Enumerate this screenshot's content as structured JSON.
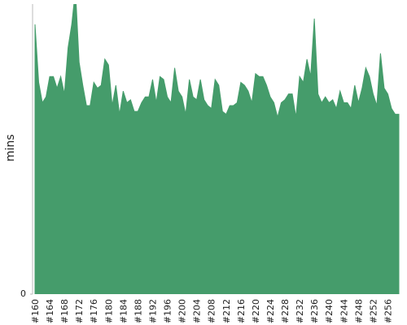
{
  "chart_data": {
    "type": "area",
    "y_label": "mins",
    "color": "#459c6b",
    "categories": [
      "#160",
      null,
      null,
      null,
      "#164",
      null,
      null,
      null,
      "#168",
      null,
      null,
      null,
      "#172",
      null,
      null,
      null,
      "#176",
      null,
      null,
      null,
      "#180",
      null,
      null,
      null,
      "#184",
      null,
      null,
      null,
      "#188",
      null,
      null,
      null,
      "#192",
      null,
      null,
      null,
      "#196",
      null,
      null,
      null,
      "#200",
      null,
      null,
      null,
      "#204",
      null,
      null,
      null,
      "#208",
      null,
      null,
      null,
      "#212",
      null,
      null,
      null,
      "#216",
      null,
      null,
      null,
      "#220",
      null,
      null,
      null,
      "#224",
      null,
      null,
      null,
      "#228",
      null,
      null,
      null,
      "#232",
      null,
      null,
      null,
      "#236",
      null,
      null,
      null,
      "#240",
      null,
      null,
      null,
      "#244",
      null,
      null,
      null,
      "#248",
      null,
      null,
      null,
      "#252",
      null,
      null,
      null,
      "#256",
      null,
      null,
      null
    ],
    "values": [
      93,
      73,
      66,
      68,
      75,
      75,
      71,
      75,
      69,
      85,
      93,
      105,
      80,
      72,
      65,
      65,
      73,
      71,
      72,
      81,
      79,
      65,
      72,
      62,
      70,
      66,
      67,
      63,
      63,
      66,
      68,
      68,
      74,
      66,
      75,
      74,
      68,
      66,
      78,
      70,
      68,
      62,
      74,
      68,
      67,
      74,
      67,
      65,
      64,
      74,
      72,
      63,
      62,
      65,
      65,
      66,
      73,
      72,
      70,
      66,
      76,
      75,
      75,
      72,
      68,
      66,
      61,
      66,
      67,
      69,
      69,
      61,
      75,
      73,
      81,
      75,
      95,
      69,
      66,
      68,
      66,
      67,
      64,
      70,
      66,
      66,
      64,
      72,
      66,
      71,
      78,
      75,
      69,
      65,
      83,
      71,
      69,
      64,
      62,
      62
    ],
    "ylim": [
      0,
      100
    ],
    "yticks": [
      0
    ]
  }
}
